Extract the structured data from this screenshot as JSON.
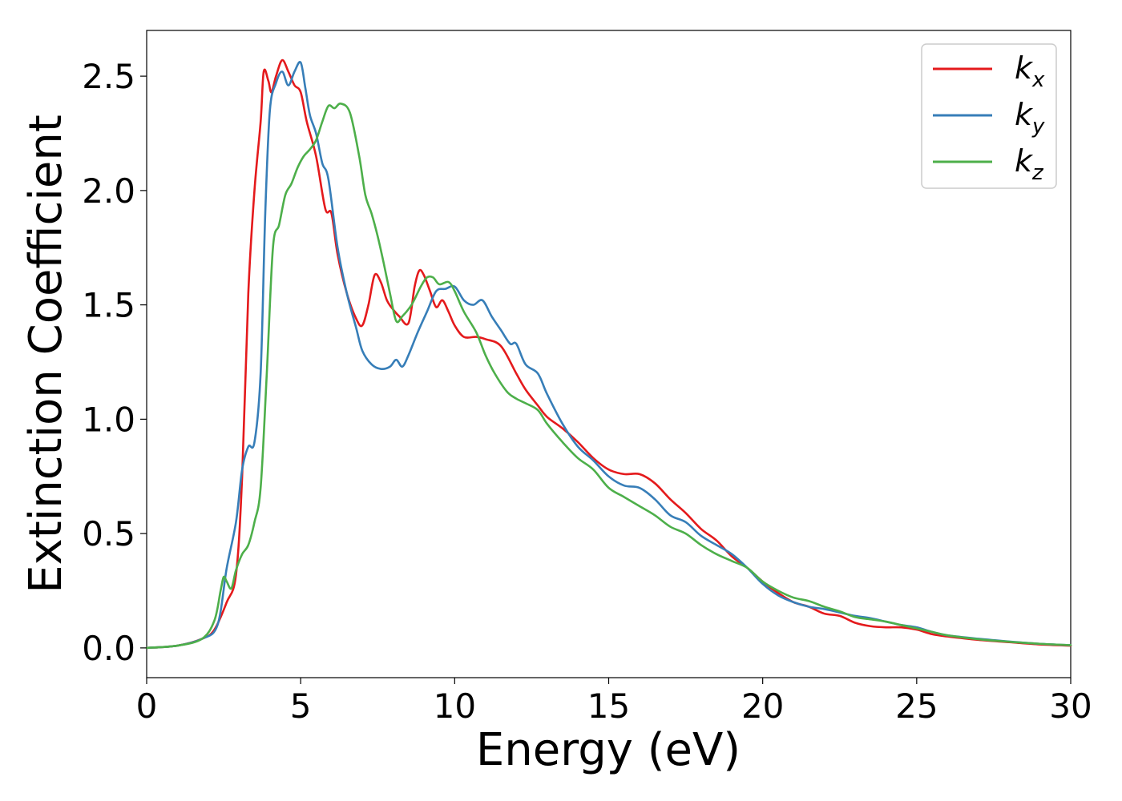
{
  "chart_data": {
    "type": "line",
    "title": "",
    "xlabel": "Energy (eV)",
    "ylabel": "Extinction Coefficient",
    "xlim": [
      0,
      30
    ],
    "ylim": [
      -0.13,
      2.7
    ],
    "x_ticks": [
      "0",
      "5",
      "10",
      "15",
      "20",
      "25",
      "30"
    ],
    "y_ticks": [
      "0.0",
      "0.5",
      "1.0",
      "1.5",
      "2.0",
      "2.5"
    ],
    "x_tick_values": [
      0,
      5,
      10,
      15,
      20,
      25,
      30
    ],
    "y_tick_values": [
      0.0,
      0.5,
      1.0,
      1.5,
      2.0,
      2.5
    ],
    "grid": false,
    "legend_position": "top-right",
    "series": [
      {
        "name": "k_x",
        "legend_base": "k",
        "legend_sub": "x",
        "color": "#e41a1c",
        "points": [
          [
            0,
            0.0
          ],
          [
            1,
            0.01
          ],
          [
            1.8,
            0.04
          ],
          [
            2.2,
            0.08
          ],
          [
            2.6,
            0.2
          ],
          [
            2.9,
            0.32
          ],
          [
            3.1,
            0.75
          ],
          [
            3.3,
            1.55
          ],
          [
            3.5,
            2.0
          ],
          [
            3.7,
            2.3
          ],
          [
            3.8,
            2.52
          ],
          [
            3.95,
            2.48
          ],
          [
            4.05,
            2.43
          ],
          [
            4.2,
            2.5
          ],
          [
            4.4,
            2.57
          ],
          [
            4.6,
            2.52
          ],
          [
            4.8,
            2.46
          ],
          [
            5.0,
            2.43
          ],
          [
            5.2,
            2.3
          ],
          [
            5.5,
            2.15
          ],
          [
            5.8,
            1.92
          ],
          [
            6.0,
            1.9
          ],
          [
            6.2,
            1.72
          ],
          [
            6.5,
            1.55
          ],
          [
            6.8,
            1.44
          ],
          [
            7.0,
            1.41
          ],
          [
            7.2,
            1.5
          ],
          [
            7.4,
            1.63
          ],
          [
            7.6,
            1.6
          ],
          [
            7.8,
            1.52
          ],
          [
            8.0,
            1.48
          ],
          [
            8.2,
            1.45
          ],
          [
            8.5,
            1.42
          ],
          [
            8.7,
            1.58
          ],
          [
            8.85,
            1.65
          ],
          [
            9.0,
            1.63
          ],
          [
            9.2,
            1.56
          ],
          [
            9.4,
            1.49
          ],
          [
            9.6,
            1.52
          ],
          [
            9.8,
            1.47
          ],
          [
            10.0,
            1.41
          ],
          [
            10.3,
            1.36
          ],
          [
            10.7,
            1.36
          ],
          [
            11.0,
            1.35
          ],
          [
            11.5,
            1.32
          ],
          [
            12.0,
            1.2
          ],
          [
            12.3,
            1.13
          ],
          [
            12.7,
            1.06
          ],
          [
            13.0,
            1.01
          ],
          [
            13.5,
            0.96
          ],
          [
            14.0,
            0.9
          ],
          [
            14.5,
            0.83
          ],
          [
            15.0,
            0.78
          ],
          [
            15.5,
            0.76
          ],
          [
            16.0,
            0.76
          ],
          [
            16.5,
            0.72
          ],
          [
            17.0,
            0.65
          ],
          [
            17.5,
            0.59
          ],
          [
            18.0,
            0.52
          ],
          [
            18.5,
            0.47
          ],
          [
            19.0,
            0.4
          ],
          [
            19.5,
            0.35
          ],
          [
            20.0,
            0.29
          ],
          [
            20.5,
            0.24
          ],
          [
            21.0,
            0.2
          ],
          [
            21.5,
            0.18
          ],
          [
            22.0,
            0.15
          ],
          [
            22.5,
            0.14
          ],
          [
            23.0,
            0.11
          ],
          [
            23.5,
            0.095
          ],
          [
            24.0,
            0.09
          ],
          [
            24.5,
            0.09
          ],
          [
            25.0,
            0.08
          ],
          [
            25.5,
            0.06
          ],
          [
            26.0,
            0.05
          ],
          [
            27.0,
            0.035
          ],
          [
            28.0,
            0.025
          ],
          [
            29.0,
            0.015
          ],
          [
            30.0,
            0.01
          ]
        ]
      },
      {
        "name": "k_y",
        "legend_base": "k",
        "legend_sub": "y",
        "color": "#377eb8",
        "points": [
          [
            0,
            0.0
          ],
          [
            1,
            0.01
          ],
          [
            1.8,
            0.04
          ],
          [
            2.3,
            0.1
          ],
          [
            2.6,
            0.35
          ],
          [
            2.9,
            0.55
          ],
          [
            3.1,
            0.78
          ],
          [
            3.3,
            0.88
          ],
          [
            3.5,
            0.9
          ],
          [
            3.7,
            1.2
          ],
          [
            3.85,
            1.9
          ],
          [
            4.0,
            2.35
          ],
          [
            4.2,
            2.47
          ],
          [
            4.4,
            2.52
          ],
          [
            4.6,
            2.46
          ],
          [
            4.8,
            2.52
          ],
          [
            5.0,
            2.56
          ],
          [
            5.15,
            2.45
          ],
          [
            5.3,
            2.33
          ],
          [
            5.5,
            2.25
          ],
          [
            5.7,
            2.12
          ],
          [
            5.9,
            2.05
          ],
          [
            6.2,
            1.75
          ],
          [
            6.5,
            1.55
          ],
          [
            6.8,
            1.4
          ],
          [
            7.0,
            1.3
          ],
          [
            7.3,
            1.24
          ],
          [
            7.6,
            1.22
          ],
          [
            7.9,
            1.23
          ],
          [
            8.1,
            1.26
          ],
          [
            8.3,
            1.23
          ],
          [
            8.5,
            1.28
          ],
          [
            8.8,
            1.38
          ],
          [
            9.1,
            1.47
          ],
          [
            9.4,
            1.56
          ],
          [
            9.7,
            1.57
          ],
          [
            10.0,
            1.58
          ],
          [
            10.3,
            1.52
          ],
          [
            10.6,
            1.5
          ],
          [
            10.9,
            1.52
          ],
          [
            11.2,
            1.45
          ],
          [
            11.5,
            1.39
          ],
          [
            11.8,
            1.33
          ],
          [
            12.0,
            1.33
          ],
          [
            12.3,
            1.24
          ],
          [
            12.7,
            1.2
          ],
          [
            13.0,
            1.11
          ],
          [
            13.5,
            0.98
          ],
          [
            14.0,
            0.88
          ],
          [
            14.5,
            0.82
          ],
          [
            15.0,
            0.75
          ],
          [
            15.5,
            0.71
          ],
          [
            16.0,
            0.7
          ],
          [
            16.5,
            0.65
          ],
          [
            17.0,
            0.58
          ],
          [
            17.5,
            0.55
          ],
          [
            18.0,
            0.49
          ],
          [
            18.5,
            0.45
          ],
          [
            19.0,
            0.41
          ],
          [
            19.5,
            0.35
          ],
          [
            20.0,
            0.28
          ],
          [
            20.5,
            0.23
          ],
          [
            21.0,
            0.2
          ],
          [
            21.5,
            0.18
          ],
          [
            22.0,
            0.17
          ],
          [
            22.5,
            0.155
          ],
          [
            23.0,
            0.14
          ],
          [
            23.5,
            0.13
          ],
          [
            24.0,
            0.115
          ],
          [
            24.5,
            0.1
          ],
          [
            25.0,
            0.09
          ],
          [
            25.5,
            0.07
          ],
          [
            26.0,
            0.055
          ],
          [
            27.0,
            0.04
          ],
          [
            28.0,
            0.028
          ],
          [
            29.0,
            0.018
          ],
          [
            30.0,
            0.012
          ]
        ]
      },
      {
        "name": "k_z",
        "legend_base": "k",
        "legend_sub": "z",
        "color": "#4daf4a",
        "points": [
          [
            0,
            0.0
          ],
          [
            1,
            0.01
          ],
          [
            1.8,
            0.04
          ],
          [
            2.2,
            0.12
          ],
          [
            2.4,
            0.25
          ],
          [
            2.5,
            0.31
          ],
          [
            2.6,
            0.29
          ],
          [
            2.75,
            0.26
          ],
          [
            2.9,
            0.34
          ],
          [
            3.1,
            0.41
          ],
          [
            3.3,
            0.45
          ],
          [
            3.5,
            0.55
          ],
          [
            3.7,
            0.7
          ],
          [
            3.9,
            1.2
          ],
          [
            4.1,
            1.75
          ],
          [
            4.3,
            1.85
          ],
          [
            4.5,
            1.98
          ],
          [
            4.7,
            2.03
          ],
          [
            4.9,
            2.1
          ],
          [
            5.1,
            2.15
          ],
          [
            5.3,
            2.18
          ],
          [
            5.5,
            2.22
          ],
          [
            5.7,
            2.3
          ],
          [
            5.9,
            2.37
          ],
          [
            6.1,
            2.36
          ],
          [
            6.3,
            2.38
          ],
          [
            6.6,
            2.34
          ],
          [
            6.9,
            2.15
          ],
          [
            7.1,
            1.98
          ],
          [
            7.3,
            1.9
          ],
          [
            7.5,
            1.8
          ],
          [
            7.7,
            1.68
          ],
          [
            7.9,
            1.55
          ],
          [
            8.1,
            1.43
          ],
          [
            8.3,
            1.45
          ],
          [
            8.6,
            1.5
          ],
          [
            8.9,
            1.58
          ],
          [
            9.1,
            1.62
          ],
          [
            9.3,
            1.62
          ],
          [
            9.5,
            1.59
          ],
          [
            9.8,
            1.6
          ],
          [
            10.0,
            1.56
          ],
          [
            10.3,
            1.47
          ],
          [
            10.7,
            1.38
          ],
          [
            11.0,
            1.28
          ],
          [
            11.3,
            1.2
          ],
          [
            11.7,
            1.12
          ],
          [
            12.0,
            1.09
          ],
          [
            12.3,
            1.07
          ],
          [
            12.7,
            1.04
          ],
          [
            13.0,
            0.98
          ],
          [
            13.5,
            0.9
          ],
          [
            14.0,
            0.83
          ],
          [
            14.5,
            0.78
          ],
          [
            15.0,
            0.7
          ],
          [
            15.5,
            0.66
          ],
          [
            16.0,
            0.62
          ],
          [
            16.5,
            0.58
          ],
          [
            17.0,
            0.53
          ],
          [
            17.5,
            0.5
          ],
          [
            18.0,
            0.45
          ],
          [
            18.5,
            0.41
          ],
          [
            19.0,
            0.38
          ],
          [
            19.5,
            0.35
          ],
          [
            20.0,
            0.29
          ],
          [
            20.5,
            0.25
          ],
          [
            21.0,
            0.22
          ],
          [
            21.5,
            0.205
          ],
          [
            22.0,
            0.18
          ],
          [
            22.5,
            0.16
          ],
          [
            23.0,
            0.135
          ],
          [
            23.5,
            0.125
          ],
          [
            24.0,
            0.115
          ],
          [
            24.5,
            0.1
          ],
          [
            25.0,
            0.085
          ],
          [
            25.5,
            0.07
          ],
          [
            26.0,
            0.055
          ],
          [
            27.0,
            0.038
          ],
          [
            28.0,
            0.027
          ],
          [
            29.0,
            0.018
          ],
          [
            30.0,
            0.012
          ]
        ]
      }
    ]
  }
}
